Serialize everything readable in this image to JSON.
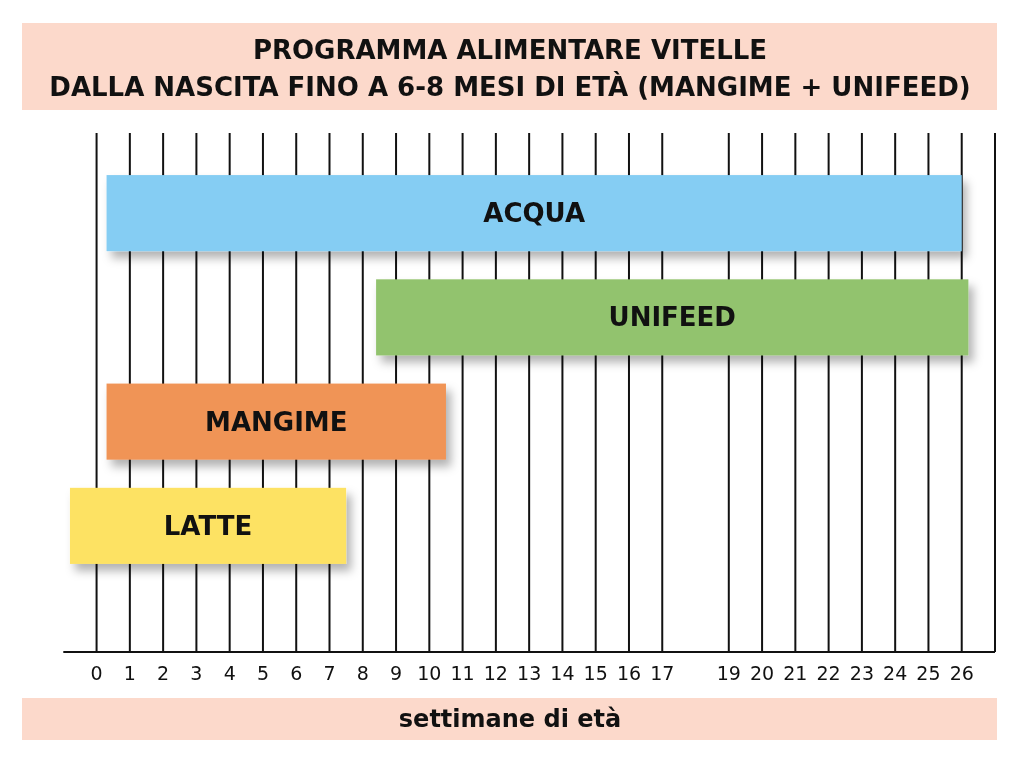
{
  "chart_data": {
    "type": "bar",
    "orientation": "horizontal",
    "title": "PROGRAMMA ALIMENTARE VITELLE\nDALLA NASCITA FINO A 6-8 MESI DI ETÀ (MANGIME + UNIFEED)",
    "xlabel": "settimane di età",
    "categories": [
      "ACQUA",
      "UNIFEED",
      "MANGIME",
      "LATTE"
    ],
    "base": [
      0.3,
      8.4,
      0.3,
      -0.8
    ],
    "values": [
      25.7,
      17.8,
      10.2,
      8.3
    ],
    "colors": [
      "#85cdf3",
      "#92c36e",
      "#f09456",
      "#fde264"
    ],
    "xlim": [
      -1,
      27
    ],
    "xticks": [
      0,
      1,
      2,
      3,
      4,
      5,
      6,
      7,
      8,
      9,
      10,
      11,
      12,
      13,
      14,
      15,
      16,
      17,
      19,
      20,
      21,
      22,
      23,
      24,
      25,
      26,
      {
        "value": 27,
        "label": null
      }
    ],
    "grid": "x"
  }
}
